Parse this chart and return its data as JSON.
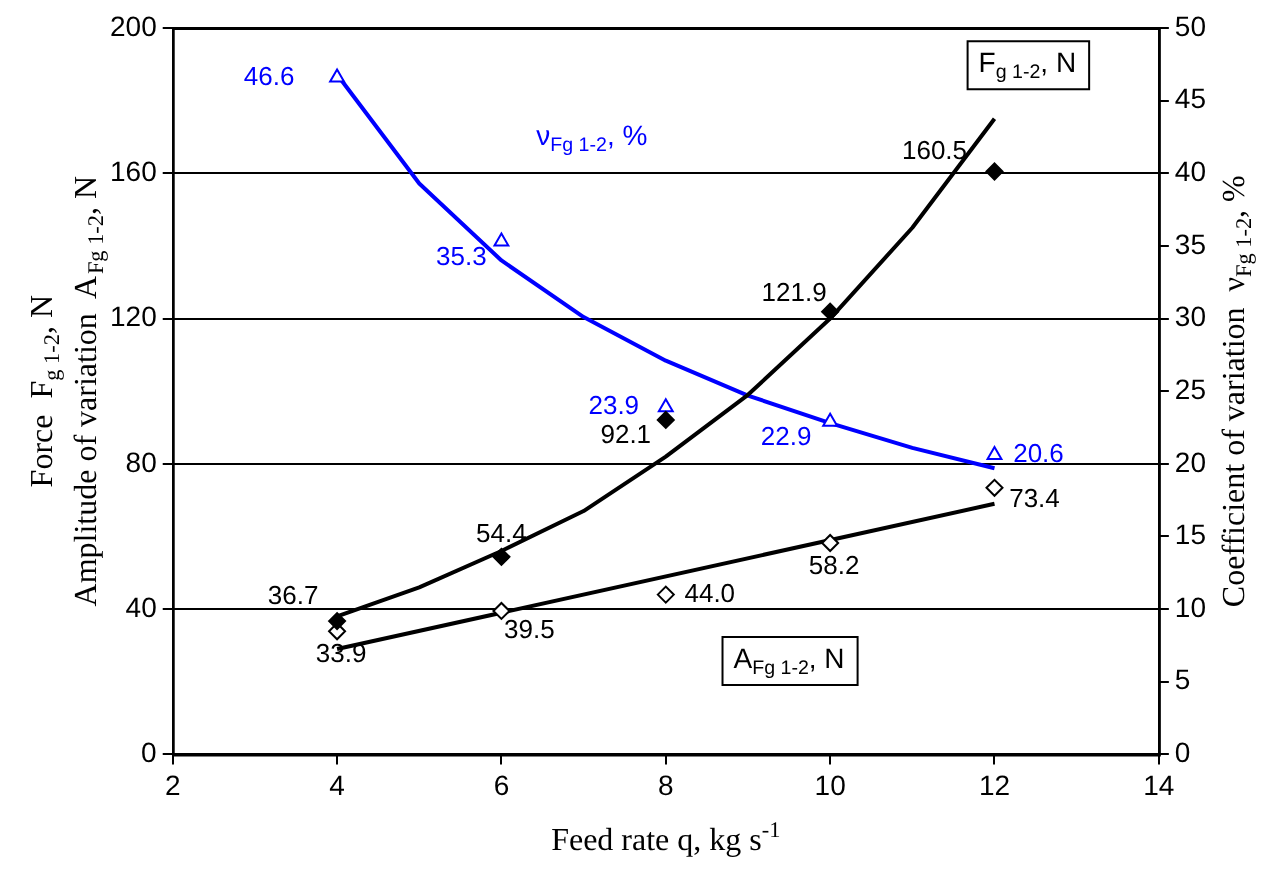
{
  "chart_data": {
    "type": "scatter",
    "xlabel": "Feed rate q, kg s$^{-1}$",
    "ylabel": "Force  F$_{g 1-2}$, N\nAmplitude of variation  A$_{Fg 1-2}$, N",
    "y2label": "Coefficient of variation  ν$_{Fg 1-2}$, %",
    "xlim": [
      2,
      14
    ],
    "xticks": [
      2,
      4,
      6,
      8,
      10,
      12,
      14
    ],
    "ylim": [
      0,
      200
    ],
    "yticks": [
      0,
      40,
      80,
      120,
      160,
      200
    ],
    "y2lim": [
      0,
      50
    ],
    "y2ticks": [
      0,
      5,
      10,
      15,
      20,
      25,
      30,
      35,
      40,
      45,
      50
    ],
    "grid": "y",
    "legend": false,
    "annotations": [
      "F$_{g 1-2}$, N",
      "ν$_{Fg 1-2}$, %",
      "A$_{Fg 1-2}$, N"
    ],
    "series": [
      {
        "marker": "diamond",
        "color": "#000000",
        "x": [
          4,
          6,
          8,
          10,
          12
        ],
        "values": [
          36.7,
          54.4,
          92.1,
          121.9,
          160.5
        ],
        "value_labels": [
          "36.7",
          "54.4",
          "92.1",
          "121.9",
          "160.5"
        ]
      },
      {
        "marker": "diamond",
        "color": "#000000",
        "x": [
          4,
          6,
          8,
          10,
          12
        ],
        "values": [
          33.9,
          39.5,
          44.0,
          58.2,
          73.4
        ],
        "value_labels": [
          "33.9",
          "39.5",
          "44.0",
          "58.2",
          "73.4"
        ]
      },
      {
        "marker": "triangle",
        "color": "#0000ff",
        "axis": "y2",
        "x": [
          4,
          6,
          8,
          10,
          12
        ],
        "values": [
          46.6,
          35.3,
          23.9,
          22.9,
          20.6
        ],
        "value_labels": [
          "46.6",
          "35.3",
          "23.9",
          "22.9",
          "20.6"
        ]
      },
      {
        "type": "line",
        "color": "#000000",
        "x": [
          4,
          5,
          6,
          7,
          8,
          9,
          10,
          11,
          12
        ],
        "values": [
          38,
          46,
          56,
          67,
          82,
          99,
          120,
          145,
          175
        ]
      },
      {
        "type": "line",
        "color": "#000000",
        "x": [
          4,
          12
        ],
        "values": [
          29,
          69
        ]
      },
      {
        "type": "line",
        "color": "#0000ff",
        "axis": "y2",
        "x": [
          4,
          5,
          6,
          7,
          8,
          9,
          10,
          11,
          12
        ],
        "values": [
          46.8,
          39.3,
          34.0,
          30.1,
          27.1,
          24.7,
          22.8,
          21.1,
          19.7
        ]
      }
    ]
  }
}
